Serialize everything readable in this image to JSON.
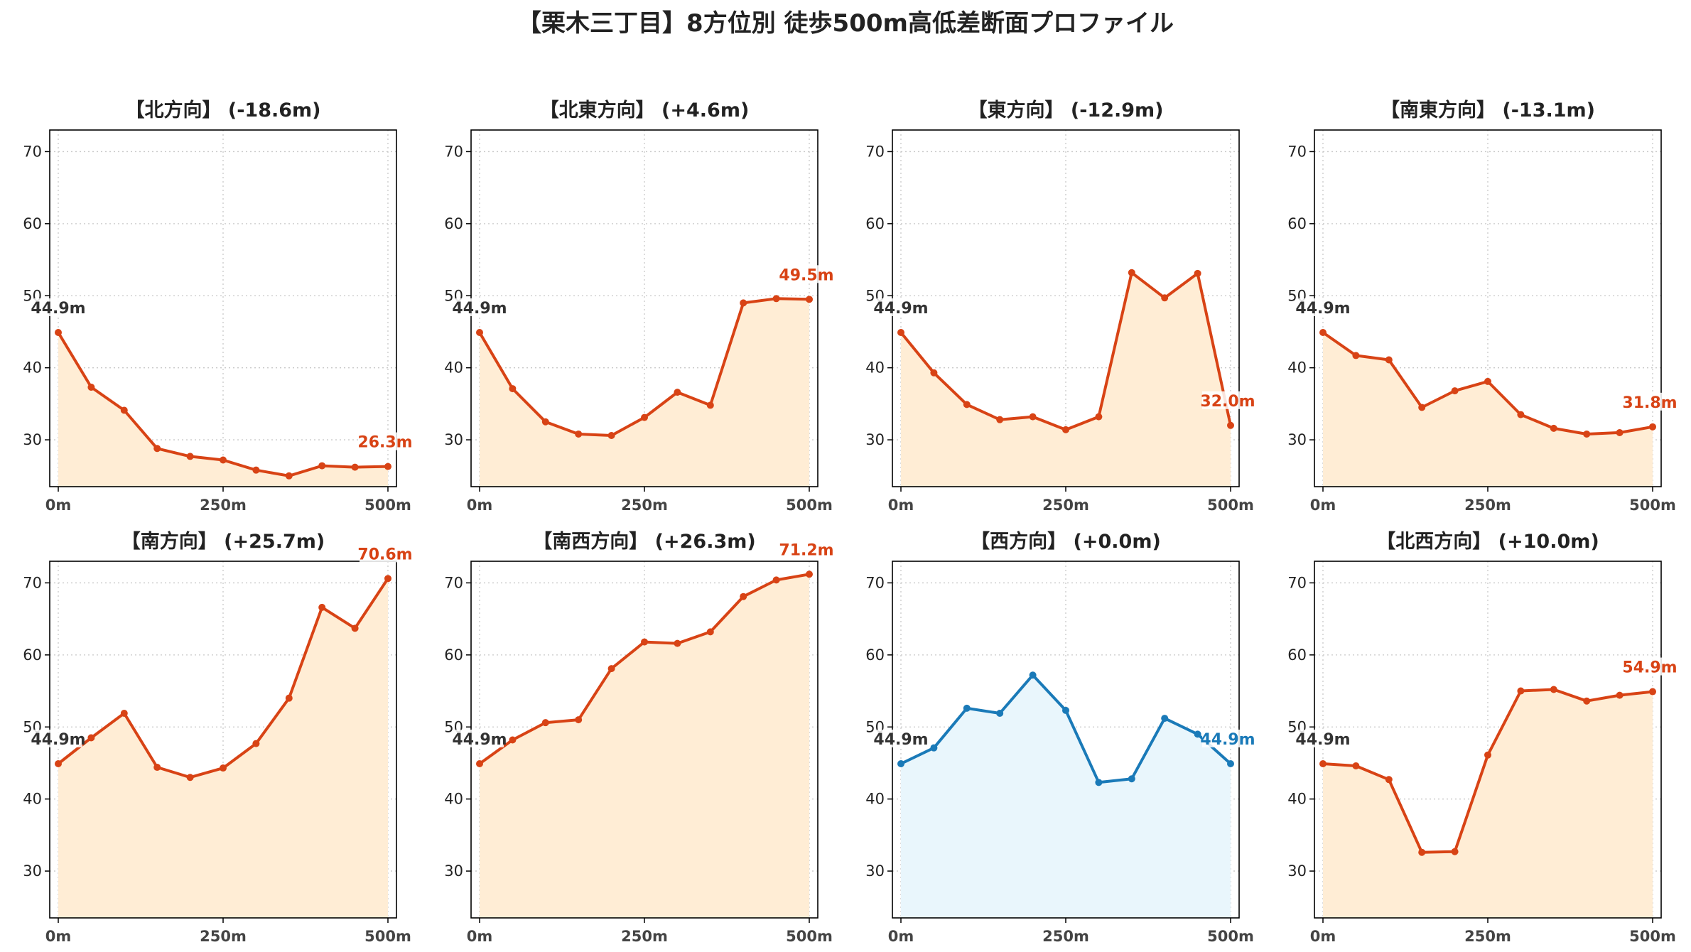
{
  "title": "【栗木三丁目】8方位別 徒歩500m高低差断面プロファイル",
  "colors": {
    "up": "#d84315",
    "up_fill": "#ffedd5",
    "flat": "#1a7ab8",
    "flat_fill": "#e9f6fc",
    "start_label": "#333333",
    "axis": "#000000",
    "grid": "#c8c8c8"
  },
  "chart_data": [
    {
      "type": "line",
      "title": "【北方向】 (-18.6m)",
      "color_key": "up",
      "x": [
        0,
        50,
        100,
        150,
        200,
        250,
        300,
        350,
        400,
        450,
        500
      ],
      "y": [
        44.9,
        37.3,
        34.1,
        28.8,
        27.7,
        27.2,
        25.8,
        25.0,
        26.4,
        26.2,
        26.3
      ],
      "start_label": "44.9m",
      "end_label": "26.3m",
      "x_ticks": [
        "0m",
        "250m",
        "500m"
      ],
      "y_ticks": [
        30,
        40,
        50,
        60,
        70
      ],
      "ylim": [
        23.5,
        73
      ],
      "grid": true
    },
    {
      "type": "line",
      "title": "【北東方向】 (+4.6m)",
      "color_key": "up",
      "x": [
        0,
        50,
        100,
        150,
        200,
        250,
        300,
        350,
        400,
        450,
        500
      ],
      "y": [
        44.9,
        37.1,
        32.5,
        30.8,
        30.6,
        33.1,
        36.6,
        34.8,
        49.0,
        49.6,
        49.5
      ],
      "start_label": "44.9m",
      "end_label": "49.5m",
      "x_ticks": [
        "0m",
        "250m",
        "500m"
      ],
      "y_ticks": [
        30,
        40,
        50,
        60,
        70
      ],
      "ylim": [
        23.5,
        73
      ],
      "grid": true
    },
    {
      "type": "line",
      "title": "【東方向】 (-12.9m)",
      "color_key": "up",
      "x": [
        0,
        50,
        100,
        150,
        200,
        250,
        300,
        350,
        400,
        450,
        500
      ],
      "y": [
        44.9,
        39.3,
        34.9,
        32.8,
        33.2,
        31.4,
        33.2,
        53.2,
        49.7,
        53.1,
        32.0
      ],
      "start_label": "44.9m",
      "end_label": "32.0m",
      "x_ticks": [
        "0m",
        "250m",
        "500m"
      ],
      "y_ticks": [
        30,
        40,
        50,
        60,
        70
      ],
      "ylim": [
        23.5,
        73
      ],
      "grid": true
    },
    {
      "type": "line",
      "title": "【南東方向】 (-13.1m)",
      "color_key": "up",
      "x": [
        0,
        50,
        100,
        150,
        200,
        250,
        300,
        350,
        400,
        450,
        500
      ],
      "y": [
        44.9,
        41.7,
        41.1,
        34.5,
        36.8,
        38.1,
        33.5,
        31.6,
        30.8,
        31.0,
        31.8
      ],
      "start_label": "44.9m",
      "end_label": "31.8m",
      "x_ticks": [
        "0m",
        "250m",
        "500m"
      ],
      "y_ticks": [
        30,
        40,
        50,
        60,
        70
      ],
      "ylim": [
        23.5,
        73
      ],
      "grid": true
    },
    {
      "type": "line",
      "title": "【南方向】 (+25.7m)",
      "color_key": "up",
      "x": [
        0,
        50,
        100,
        150,
        200,
        250,
        300,
        350,
        400,
        450,
        500
      ],
      "y": [
        44.9,
        48.5,
        51.9,
        44.4,
        43.0,
        44.3,
        47.7,
        54.0,
        66.6,
        63.7,
        70.6
      ],
      "start_label": "44.9m",
      "end_label": "70.6m",
      "x_ticks": [
        "0m",
        "250m",
        "500m"
      ],
      "y_ticks": [
        30,
        40,
        50,
        60,
        70
      ],
      "ylim": [
        23.5,
        73
      ],
      "grid": true
    },
    {
      "type": "line",
      "title": "【南西方向】 (+26.3m)",
      "color_key": "up",
      "x": [
        0,
        50,
        100,
        150,
        200,
        250,
        300,
        350,
        400,
        450,
        500
      ],
      "y": [
        44.9,
        48.2,
        50.6,
        51.0,
        58.1,
        61.8,
        61.6,
        63.2,
        68.1,
        70.4,
        71.2
      ],
      "start_label": "44.9m",
      "end_label": "71.2m",
      "x_ticks": [
        "0m",
        "250m",
        "500m"
      ],
      "y_ticks": [
        30,
        40,
        50,
        60,
        70
      ],
      "ylim": [
        23.5,
        73
      ],
      "grid": true
    },
    {
      "type": "line",
      "title": "【西方向】 (+0.0m)",
      "color_key": "flat",
      "x": [
        0,
        50,
        100,
        150,
        200,
        250,
        300,
        350,
        400,
        450,
        500
      ],
      "y": [
        44.9,
        47.1,
        52.6,
        51.9,
        57.2,
        52.3,
        42.3,
        42.8,
        51.2,
        49.0,
        44.9
      ],
      "start_label": "44.9m",
      "end_label": "44.9m",
      "x_ticks": [
        "0m",
        "250m",
        "500m"
      ],
      "y_ticks": [
        30,
        40,
        50,
        60,
        70
      ],
      "ylim": [
        23.5,
        73
      ],
      "grid": true
    },
    {
      "type": "line",
      "title": "【北西方向】 (+10.0m)",
      "color_key": "up",
      "x": [
        0,
        50,
        100,
        150,
        200,
        250,
        300,
        350,
        400,
        450,
        500
      ],
      "y": [
        44.9,
        44.6,
        42.7,
        32.6,
        32.7,
        46.1,
        55.0,
        55.2,
        53.6,
        54.4,
        54.9
      ],
      "start_label": "44.9m",
      "end_label": "54.9m",
      "x_ticks": [
        "0m",
        "250m",
        "500m"
      ],
      "y_ticks": [
        30,
        40,
        50,
        60,
        70
      ],
      "ylim": [
        23.5,
        73
      ],
      "grid": true
    }
  ]
}
